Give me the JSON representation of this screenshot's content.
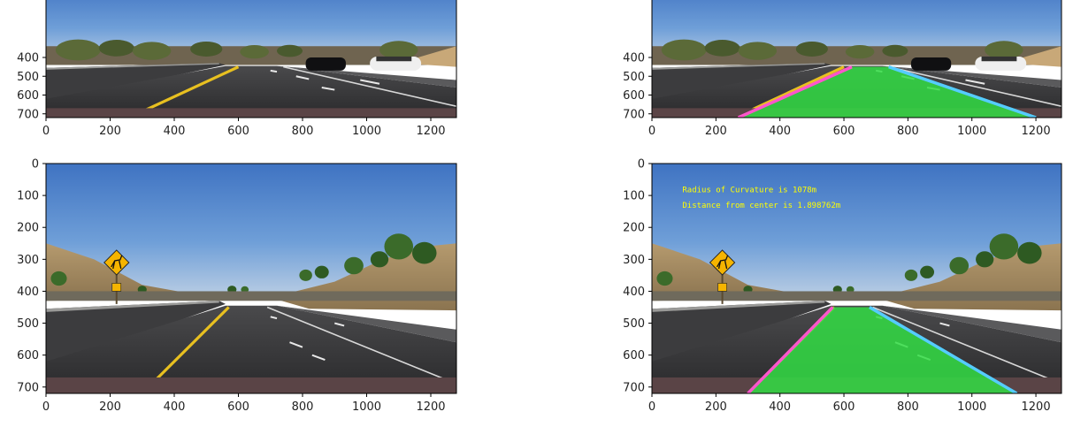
{
  "chart_data": [
    {
      "type": "image",
      "panel": "top-left",
      "image_width": 1280,
      "image_height": 720,
      "xlim": [
        0,
        1280
      ],
      "ylim": [
        720,
        340
      ],
      "xticks": [
        0,
        200,
        400,
        600,
        800,
        1000,
        1200
      ],
      "yticks": [
        400,
        500,
        600,
        700
      ],
      "shows_lane_overlay": false,
      "lane_line_color": "#e8c020",
      "overlay_text": []
    },
    {
      "type": "image",
      "panel": "top-right",
      "image_width": 1280,
      "image_height": 720,
      "xlim": [
        0,
        1280
      ],
      "ylim": [
        720,
        340
      ],
      "xticks": [
        0,
        200,
        400,
        600,
        800,
        1000,
        1200
      ],
      "yticks": [
        400,
        500,
        600,
        700
      ],
      "shows_lane_overlay": true,
      "lane_fill_color": "#33dd44",
      "left_edge_color": "#ff55cc",
      "right_edge_color": "#55ccff",
      "lane_polygon": [
        [
          270,
          720
        ],
        [
          625,
          450
        ],
        [
          740,
          450
        ],
        [
          1200,
          720
        ]
      ],
      "overlay_text": []
    },
    {
      "type": "image",
      "panel": "bottom-left",
      "image_width": 1280,
      "image_height": 720,
      "xlim": [
        0,
        1280
      ],
      "ylim": [
        720,
        0
      ],
      "xticks": [
        0,
        200,
        400,
        600,
        800,
        1000,
        1200
      ],
      "yticks": [
        0,
        100,
        200,
        300,
        400,
        500,
        600,
        700
      ],
      "shows_lane_overlay": false,
      "sign_color": "#f5b400",
      "lane_line_color": "#e8c020",
      "overlay_text": []
    },
    {
      "type": "image",
      "panel": "bottom-right",
      "image_width": 1280,
      "image_height": 720,
      "xlim": [
        0,
        1280
      ],
      "ylim": [
        720,
        0
      ],
      "xticks": [
        0,
        200,
        400,
        600,
        800,
        1000,
        1200
      ],
      "yticks": [
        0,
        100,
        200,
        300,
        400,
        500,
        600,
        700
      ],
      "shows_lane_overlay": true,
      "lane_fill_color": "#33dd44",
      "left_edge_color": "#ff55cc",
      "right_edge_color": "#55ccff",
      "lane_polygon": [
        [
          300,
          720
        ],
        [
          565,
          450
        ],
        [
          680,
          450
        ],
        [
          1140,
          720
        ]
      ],
      "overlay_text": [
        "Radius of Curvature is 1078m",
        "Distance from center is 1.898762m"
      ]
    }
  ]
}
